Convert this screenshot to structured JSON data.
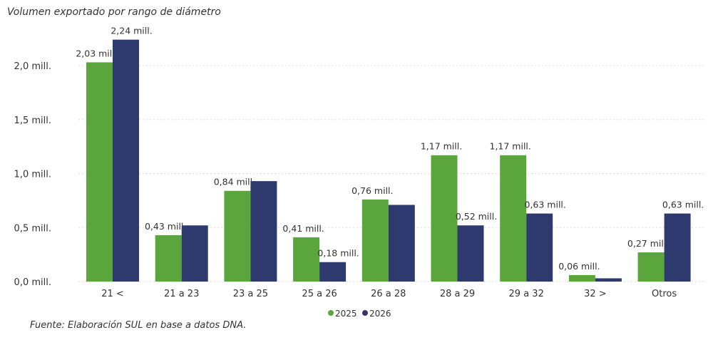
{
  "chart_data": {
    "type": "bar",
    "title": "Volumen exportado por rango de diámetro",
    "source": "Fuente: Elaboración SUL en base a datos DNA.",
    "categories": [
      "21 <",
      "21 a 23",
      "23 a 25",
      "25 a 26",
      "26 a 28",
      "28 a 29",
      "29 a 32",
      "32 >",
      "Otros"
    ],
    "series": [
      {
        "name": "2025",
        "color": "#5aa63c",
        "values": [
          2.03,
          0.43,
          0.84,
          0.41,
          0.76,
          1.17,
          1.17,
          0.06,
          0.27
        ],
        "labels": [
          "2,03 mill.",
          "0,43 mill.",
          "0,84 mill.",
          "0,41 mill.",
          "0,76 mill.",
          "1,17 mill.",
          "1,17 mill.",
          "0,06 mill.",
          "0,27 mill."
        ]
      },
      {
        "name": "2026",
        "color": "#2e3a6e",
        "values": [
          2.24,
          0.52,
          0.93,
          0.18,
          0.71,
          0.52,
          0.63,
          0.03,
          0.63
        ],
        "labels": [
          "2,24 mill.",
          null,
          null,
          "0,18 mill.",
          null,
          "0,52 mill.",
          "0,63 mill.",
          null,
          "0,63 mill."
        ]
      }
    ],
    "yticks": [
      0,
      0.5,
      1.0,
      1.5,
      2.0
    ],
    "ytick_labels": [
      "0,0 mill.",
      "0,5 mill.",
      "1,0 mill.",
      "1,5 mill.",
      "2,0 mill."
    ],
    "ylim": [
      0,
      2.3
    ],
    "grid": true,
    "legend_placement": "bottom"
  }
}
